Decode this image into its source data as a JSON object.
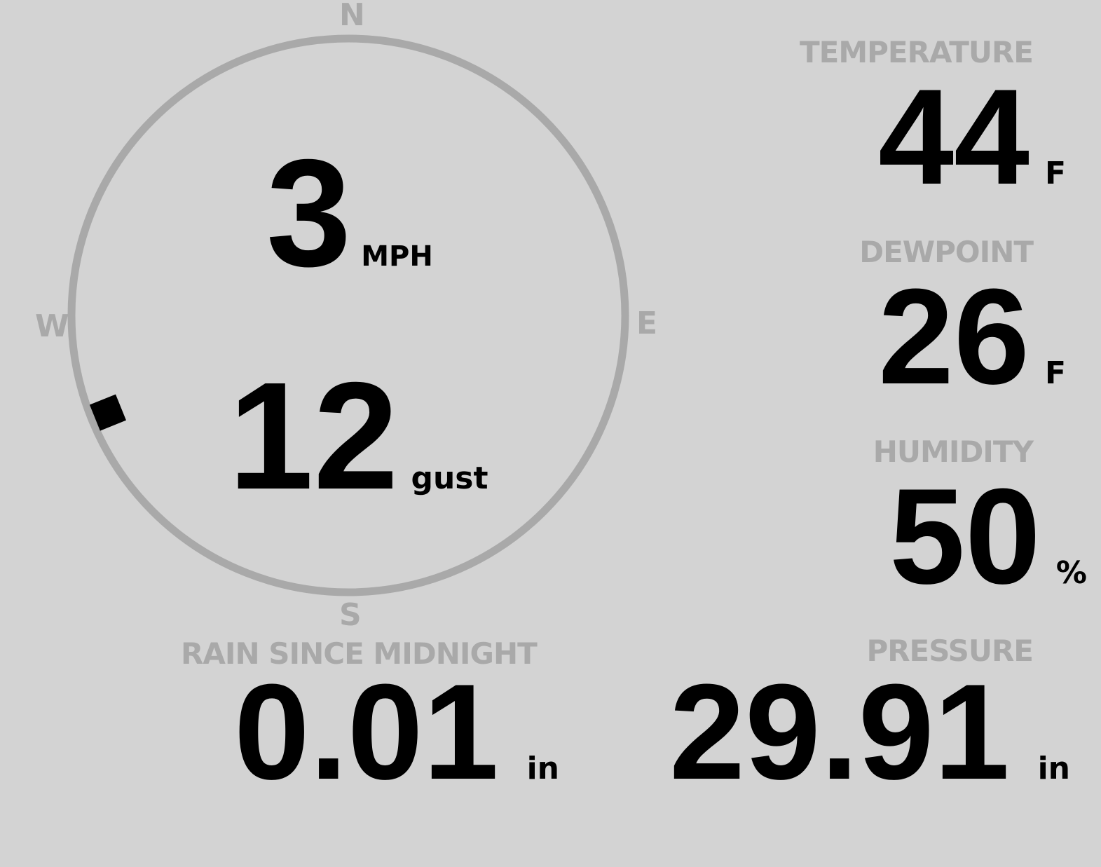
{
  "wind": {
    "speed": "3",
    "speed_unit": "MPH",
    "gust": "12",
    "gust_unit": "gust",
    "direction_degrees": 248,
    "compass": {
      "n": "N",
      "e": "E",
      "s": "S",
      "w": "W"
    }
  },
  "temperature": {
    "label": "TEMPERATURE",
    "value": "44",
    "unit": "F"
  },
  "dewpoint": {
    "label": "DEWPOINT",
    "value": "26",
    "unit": "F"
  },
  "humidity": {
    "label": "HUMIDITY",
    "value": "50",
    "unit": "%"
  },
  "rain": {
    "label": "RAIN SINCE MIDNIGHT",
    "value": "0.01",
    "unit": "in"
  },
  "pressure": {
    "label": "PRESSURE",
    "value": "29.91",
    "unit": "in"
  },
  "colors": {
    "background": "#d3d3d3",
    "label": "#a9a9a9",
    "value": "#000000"
  }
}
